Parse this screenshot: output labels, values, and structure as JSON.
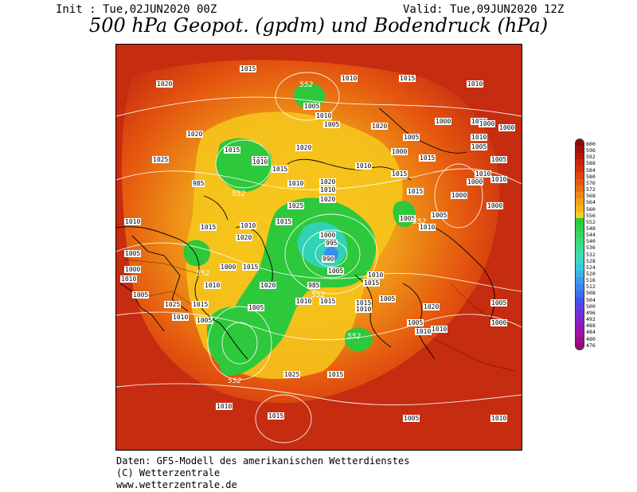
{
  "header": {
    "init": "Init : Tue,02JUN2020 00Z",
    "valid": "Valid: Tue,09JUN2020 12Z",
    "title": "500 hPa Geopot. (gpdm) und Bodendruck (hPa)"
  },
  "map": {
    "geopotential_labels": [
      "552",
      "552",
      "552",
      "552",
      "552",
      "552",
      "552"
    ],
    "pressure_labels": [
      "1015",
      "1010",
      "1020",
      "1015",
      "1010",
      "1005",
      "1010",
      "1000",
      "1000",
      "1000",
      "1015",
      "1020",
      "1025",
      "1020",
      "1015",
      "1010",
      "1015",
      "1005",
      "1020",
      "1005",
      "1000",
      "1015",
      "1010",
      "1005",
      "1010",
      "1015",
      "1020",
      "1010",
      "1005",
      "1010",
      "985",
      "1000",
      "1005",
      "1010",
      "1000",
      "990",
      "995",
      "1005",
      "1000",
      "1025",
      "1015",
      "1010",
      "1020",
      "1015",
      "1010",
      "1005",
      "1000",
      "1010",
      "1005",
      "1025",
      "1015",
      "1010",
      "1005",
      "1000",
      "1015",
      "1010",
      "1005",
      "1020",
      "985",
      "1010",
      "1015",
      "1015",
      "1010",
      "1010",
      "1015",
      "1005",
      "1020",
      "1010",
      "1005",
      "1000",
      "1005",
      "1010",
      "1000",
      "1015",
      "1010",
      "1000",
      "1010",
      "1005",
      "1020",
      "1025",
      "1015",
      "1015",
      "1010",
      "1005",
      "1010"
    ],
    "colors": {
      "background": "#c62c10",
      "ridge_orange": "#ec6a14",
      "yellow": "#f6c81c",
      "green": "#2ec83c",
      "cyan": "#32d2b4",
      "coast": "#000000",
      "isobar": "#ffffff"
    }
  },
  "colorbar": {
    "labels": [
      "600",
      "596",
      "592",
      "588",
      "584",
      "580",
      "576",
      "572",
      "568",
      "564",
      "560",
      "556",
      "552",
      "548",
      "544",
      "540",
      "536",
      "532",
      "528",
      "524",
      "520",
      "516",
      "512",
      "508",
      "504",
      "500",
      "496",
      "492",
      "488",
      "484",
      "480",
      "476"
    ],
    "colors": [
      "#8a0a0a",
      "#a01008",
      "#b4180a",
      "#c4240c",
      "#d2300e",
      "#dc4410",
      "#e45812",
      "#ec6c14",
      "#f08418",
      "#f49c1c",
      "#f6b41e",
      "#f8cc20",
      "#2ec83c",
      "#32d04a",
      "#34d660",
      "#36da78",
      "#38dc94",
      "#3adcae",
      "#3cd6c6",
      "#3cc8dc",
      "#3cb4e8",
      "#3c9cf0",
      "#3c84f4",
      "#3c6cf4",
      "#4854f0",
      "#5c40e8",
      "#7030dc",
      "#8424cc",
      "#941ab8",
      "#a012a4",
      "#a00c8c",
      "#960874"
    ]
  },
  "footer": {
    "line1": "Daten: GFS-Modell des amerikanischen Wetterdienstes",
    "line2": "(C) Wetterzentrale",
    "line3": "www.wetterzentrale.de"
  }
}
